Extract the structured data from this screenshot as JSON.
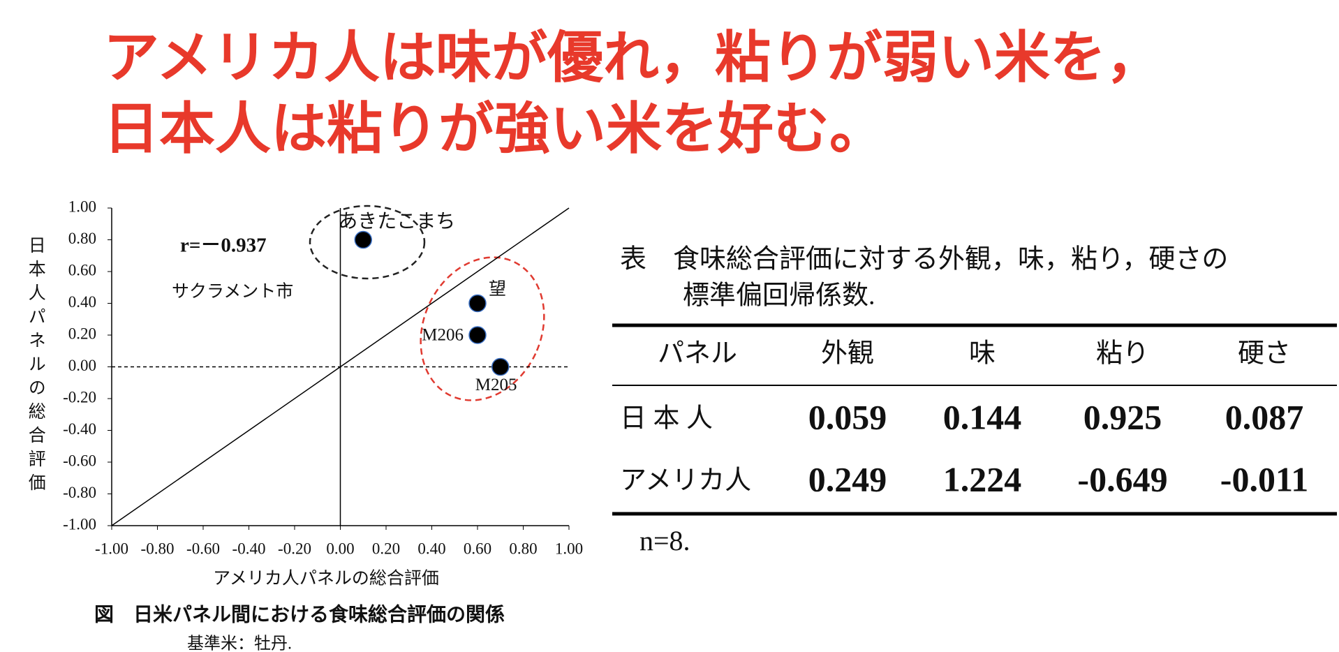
{
  "header": {
    "title_lines": [
      "アメリカ人は味が優れ，粘りが弱い米を，",
      "日本人は粘りが強い米を好む。"
    ]
  },
  "chart_data": {
    "type": "scatter",
    "x_label": "アメリカ人パネルの総合評価",
    "y_label": "日本人パネルの総合評価",
    "annotations": [
      "r=－0.937",
      "サクラメント市"
    ],
    "caption": "図　日米パネル間における食味総合評価の関係",
    "note": "基準米：牡丹.",
    "point_labels": [
      "あきたこまち",
      "望",
      "M206",
      "M205"
    ],
    "x": [
      0.1,
      0.6,
      0.6,
      0.7
    ],
    "y": [
      0.8,
      0.4,
      0.2,
      0.0
    ],
    "color": "#000000",
    "xlim": [
      -1,
      1
    ],
    "ylim": [
      -1,
      1
    ],
    "xticks": [
      {
        "value": -1,
        "label": "-1.00"
      },
      {
        "value": -0.8,
        "label": "-0.80"
      },
      {
        "value": -0.6,
        "label": "-0.60"
      },
      {
        "value": -0.4,
        "label": "-0.40"
      },
      {
        "value": -0.2,
        "label": "-0.20"
      },
      {
        "value": 0,
        "label": "0.00"
      },
      {
        "value": 0.2,
        "label": "0.20"
      },
      {
        "value": 0.4,
        "label": "0.40"
      },
      {
        "value": 0.6,
        "label": "0.60"
      },
      {
        "value": 0.8,
        "label": "0.80"
      },
      {
        "value": 1,
        "label": "1.00"
      }
    ],
    "yticks": [
      {
        "value": -1,
        "label": "-1.00"
      },
      {
        "value": -0.8,
        "label": "-0.80"
      },
      {
        "value": -0.6,
        "label": "-0.60"
      },
      {
        "value": -0.4,
        "label": "-0.40"
      },
      {
        "value": -0.2,
        "label": "-0.20"
      },
      {
        "value": 0,
        "label": "0.00"
      },
      {
        "value": 0.2,
        "label": "0.20"
      },
      {
        "value": 0.4,
        "label": "0.40"
      },
      {
        "value": 0.6,
        "label": "0.60"
      },
      {
        "value": 0.8,
        "label": "0.80"
      },
      {
        "value": 1,
        "label": "1.00"
      }
    ]
  },
  "table": {
    "title_lines": [
      "表　食味総合評価に対する外観，味，粘り，硬さの",
      "標準偏回帰係数."
    ],
    "header": [
      "パネル",
      "外観",
      "味",
      "粘り",
      "硬さ"
    ],
    "rows": [
      [
        "日 本 人",
        0.059,
        0.144,
        0.925,
        0.087
      ],
      [
        "アメリカ人",
        0.249,
        1.224,
        -0.649,
        -0.011
      ]
    ],
    "note": "n=8."
  }
}
